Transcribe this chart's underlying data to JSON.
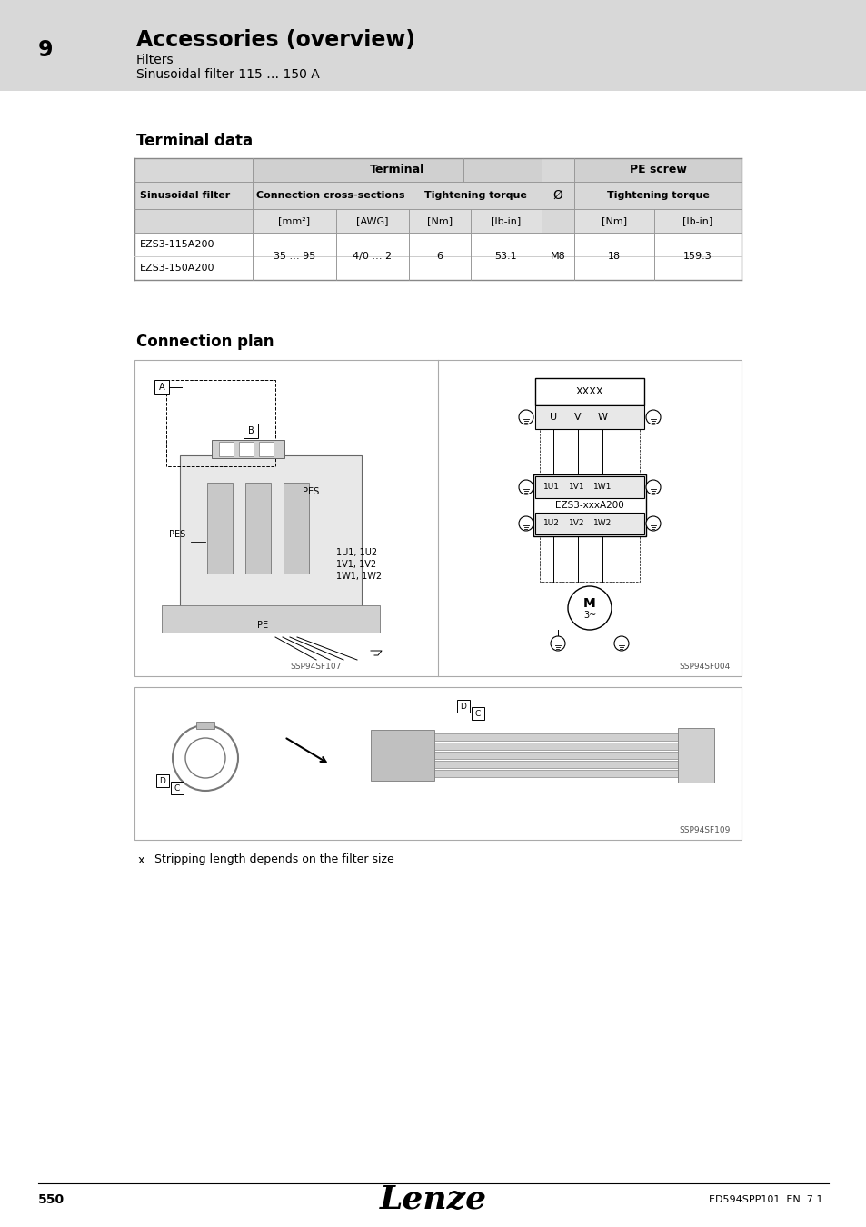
{
  "page_bg": "#e8e8e8",
  "content_bg": "#ffffff",
  "header_bg": "#d8d8d8",
  "chapter_number": "9",
  "chapter_title": "Accessories (overview)",
  "subtitle1": "Filters",
  "subtitle2": "Sinusoidal filter 115 … 150 A",
  "section1_title": "Terminal data",
  "section2_title": "Connection plan",
  "table": {
    "col_header1": "Sinusoidal filter",
    "col_group2": "Terminal",
    "col_group3": "PE screw",
    "sub_col_21": "Connection cross-sections",
    "sub_col_22": "Tightening torque",
    "sub_col_31": "Ø",
    "sub_col_32": "Tightening torque",
    "unit_mm2": "[mm²]",
    "unit_awg": "[AWG]",
    "unit_nm1": "[Nm]",
    "unit_lbin1": "[lb-in]",
    "unit_nm2": "[Nm]",
    "unit_lbin2": "[lb-in]",
    "row1_filter": "EZS3-115A200",
    "row2_filter": "EZS3-150A200",
    "val_mm2": "35 … 95",
    "val_awg": "4/0 … 2",
    "val_nm1": "6",
    "val_lbin1": "53.1",
    "val_pe": "M8",
    "val_nm2": "18",
    "val_lbin2": "159.3"
  },
  "footer_page": "550",
  "footer_doc": "ED594SPP101  EN  7.1",
  "note_x": "x",
  "note_text": "Stripping length depends on the filter size",
  "img_caption1": "SSP94SF107",
  "img_caption2": "SSP94SF004",
  "img_caption3": "SSP94SF109",
  "table_header_color": "#d0d0d0",
  "table_subheader_color": "#d8d8d8",
  "table_unit_color": "#e0e0e0"
}
